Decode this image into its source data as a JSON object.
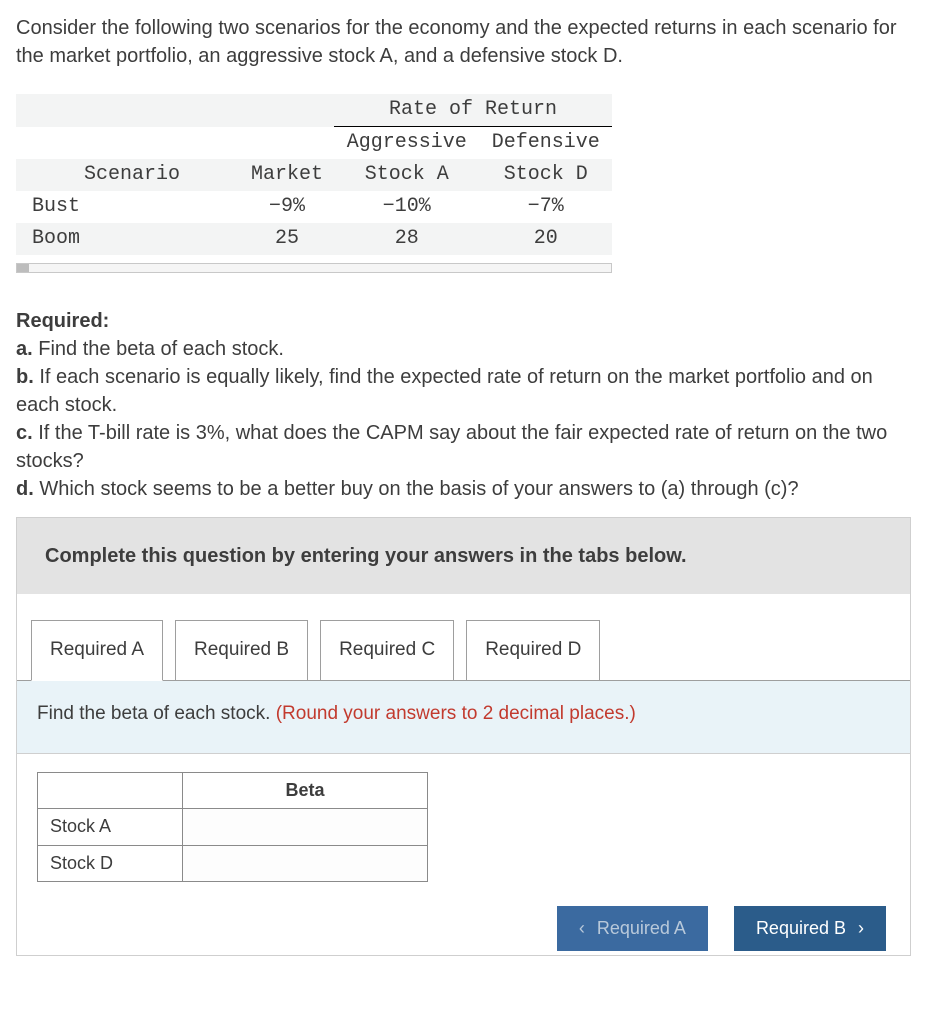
{
  "intro": "Consider the following two scenarios for the economy and the expected returns in each scenario for the market portfolio, an aggressive stock A, and a defensive stock D.",
  "rate_table": {
    "top_header": "Rate of Return",
    "columns": [
      "Scenario",
      "Market",
      "Aggressive Stock A",
      "Defensive Stock D"
    ],
    "col_scenario": "Scenario",
    "col_market": "Market",
    "col_aggr_top": "Aggressive",
    "col_aggr_bot": "Stock A",
    "col_def_top": "Defensive",
    "col_def_bot": "Stock D",
    "rows": [
      {
        "scenario": "Bust",
        "market": "−9%",
        "stock_a": "−10%",
        "stock_d": "−7%"
      },
      {
        "scenario": "Boom",
        "market": "25",
        "stock_a": "28",
        "stock_d": "20"
      }
    ],
    "alt_row_bg": "#f3f4f4",
    "font_family": "Courier New"
  },
  "required": {
    "heading": "Required:",
    "items": [
      {
        "label": "a.",
        "text": "Find the beta of each stock."
      },
      {
        "label": "b.",
        "text": "If each scenario is equally likely, find the expected rate of return on the market portfolio and on each stock."
      },
      {
        "label": "c.",
        "text": "If the T-bill rate is 3%, what does the CAPM say about the fair expected rate of return on the two stocks?"
      },
      {
        "label": "d.",
        "text": "Which stock seems to be a better buy on the basis of your answers to (a) through (c)?"
      }
    ]
  },
  "tabs_instruction": "Complete this question by entering your answers in the tabs below.",
  "tabs": [
    {
      "label": "Required A",
      "active": true
    },
    {
      "label": "Required B",
      "active": false
    },
    {
      "label": "Required C",
      "active": false
    },
    {
      "label": "Required D",
      "active": false
    }
  ],
  "tab_body": {
    "prompt": "Find the beta of each stock. ",
    "hint": "(Round your answers to 2 decimal places.)",
    "prompt_bg": "#e9f3f8",
    "hint_color": "#c23a2e"
  },
  "answer_table": {
    "header": "Beta",
    "rows": [
      "Stock A",
      "Stock D"
    ]
  },
  "nav": {
    "prev": {
      "label": "Required A",
      "bg": "#3b6aa0",
      "color": "#b9c9da"
    },
    "next": {
      "label": "Required B",
      "bg": "#2b5c8a",
      "color": "#ffffff"
    }
  }
}
